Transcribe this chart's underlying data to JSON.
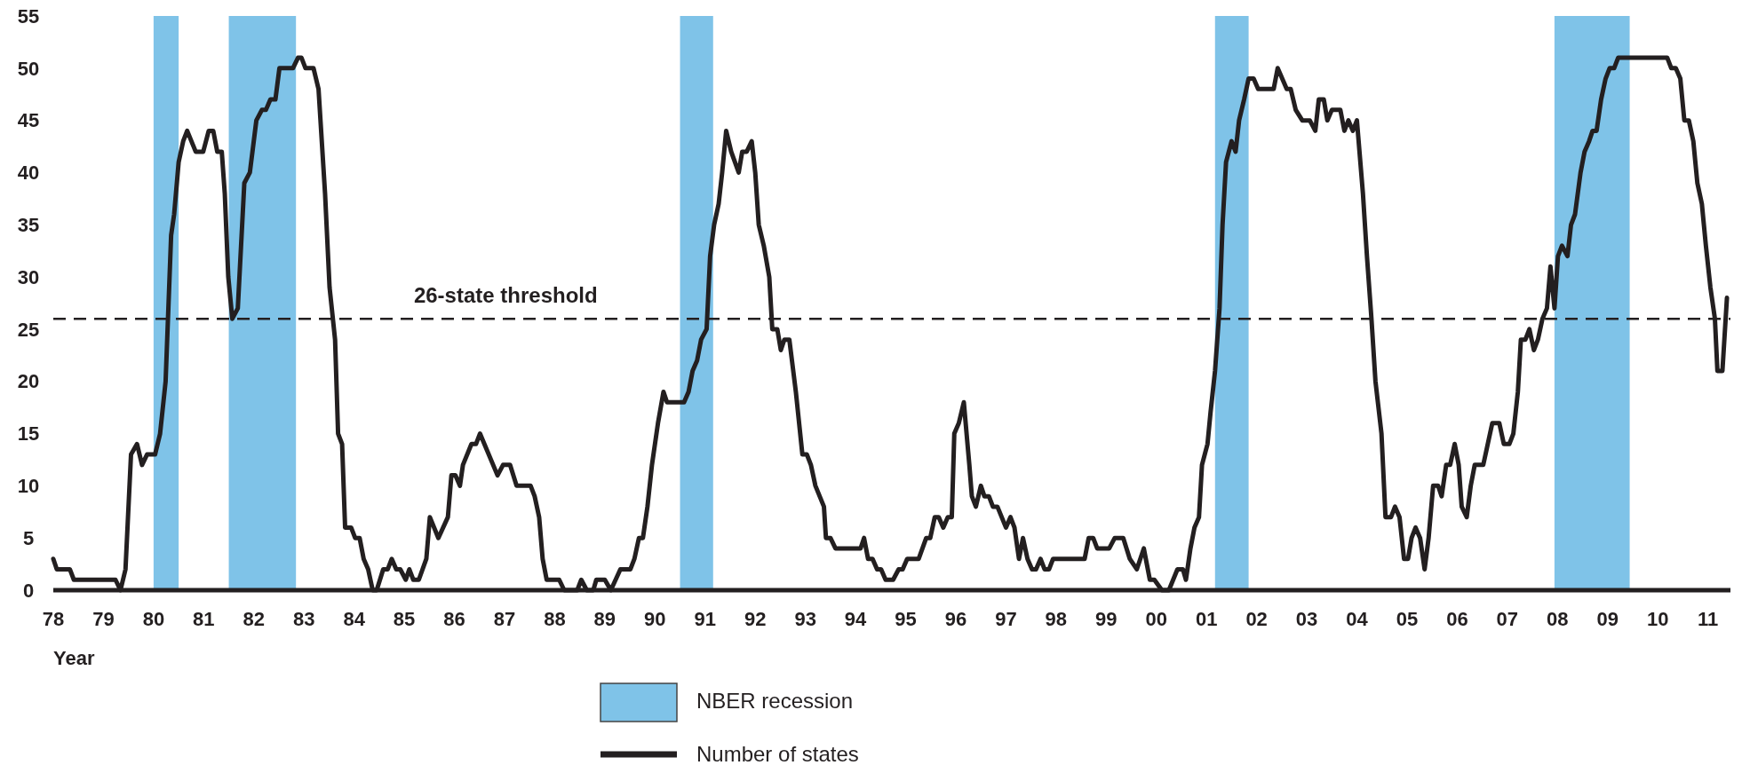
{
  "chart_data": {
    "type": "line",
    "xlabel": "Year",
    "xlim": [
      1978,
      2011.45
    ],
    "xticks": [
      {
        "value": 1978,
        "label": "78"
      },
      {
        "value": 1979,
        "label": "79"
      },
      {
        "value": 1980,
        "label": "80"
      },
      {
        "value": 1981,
        "label": "81"
      },
      {
        "value": 1982,
        "label": "82"
      },
      {
        "value": 1983,
        "label": "83"
      },
      {
        "value": 1984,
        "label": "84"
      },
      {
        "value": 1985,
        "label": "85"
      },
      {
        "value": 1986,
        "label": "86"
      },
      {
        "value": 1987,
        "label": "87"
      },
      {
        "value": 1988,
        "label": "88"
      },
      {
        "value": 1989,
        "label": "89"
      },
      {
        "value": 1990,
        "label": "90"
      },
      {
        "value": 1991,
        "label": "91"
      },
      {
        "value": 1992,
        "label": "92"
      },
      {
        "value": 1993,
        "label": "93"
      },
      {
        "value": 1994,
        "label": "94"
      },
      {
        "value": 1995,
        "label": "95"
      },
      {
        "value": 1996,
        "label": "96"
      },
      {
        "value": 1997,
        "label": "97"
      },
      {
        "value": 1998,
        "label": "98"
      },
      {
        "value": 1999,
        "label": "99"
      },
      {
        "value": 2000,
        "label": "00"
      },
      {
        "value": 2001,
        "label": "01"
      },
      {
        "value": 2002,
        "label": "02"
      },
      {
        "value": 2003,
        "label": "03"
      },
      {
        "value": 2004,
        "label": "04"
      },
      {
        "value": 2005,
        "label": "05"
      },
      {
        "value": 2006,
        "label": "06"
      },
      {
        "value": 2007,
        "label": "07"
      },
      {
        "value": 2008,
        "label": "08"
      },
      {
        "value": 2009,
        "label": "09"
      },
      {
        "value": 2010,
        "label": "10"
      },
      {
        "value": 2011,
        "label": "11"
      }
    ],
    "ylim": [
      0,
      55
    ],
    "yticks": [
      0,
      5,
      10,
      15,
      20,
      25,
      30,
      35,
      40,
      45,
      50,
      55
    ],
    "grid": false,
    "legend": "bottom",
    "marker": "none",
    "line_style": "solid",
    "ref_lines": [
      {
        "axis": "y",
        "value": 26,
        "label": "26-state threshold",
        "color": "#231f20",
        "line_style": "dashed"
      }
    ],
    "bands": [
      {
        "axis": "x",
        "from": 1980.0,
        "to": 1980.5,
        "label": "NBER recession",
        "color": "#7fc3e8"
      },
      {
        "axis": "x",
        "from": 1981.5,
        "to": 1982.84,
        "color": "#7fc3e8"
      },
      {
        "axis": "x",
        "from": 1990.5,
        "to": 1991.16,
        "color": "#7fc3e8"
      },
      {
        "axis": "x",
        "from": 2001.17,
        "to": 2001.84,
        "color": "#7fc3e8"
      },
      {
        "axis": "x",
        "from": 2007.94,
        "to": 2009.44,
        "color": "#7fc3e8"
      }
    ],
    "series": [
      {
        "name": "Number of states",
        "color": "#231f20",
        "x": [
          1978.0,
          1978.07,
          1978.33,
          1978.41,
          1979.24,
          1979.34,
          1979.44,
          1979.55,
          1979.67,
          1979.77,
          1979.87,
          1980.03,
          1980.13,
          1980.24,
          1980.35,
          1980.41,
          1980.5,
          1980.59,
          1980.67,
          1980.84,
          1980.99,
          1981.1,
          1981.19,
          1981.27,
          1981.36,
          1981.42,
          1981.49,
          1981.57,
          1981.68,
          1981.81,
          1981.92,
          1982.05,
          1982.16,
          1982.24,
          1982.33,
          1982.43,
          1982.51,
          1982.78,
          1982.88,
          1982.95,
          1983.03,
          1983.19,
          1983.29,
          1983.42,
          1983.51,
          1983.62,
          1983.68,
          1983.76,
          1983.82,
          1983.94,
          1984.02,
          1984.11,
          1984.19,
          1984.28,
          1984.37,
          1984.45,
          1984.58,
          1984.67,
          1984.75,
          1984.84,
          1984.92,
          1985.03,
          1985.1,
          1985.18,
          1985.29,
          1985.44,
          1985.51,
          1985.68,
          1985.87,
          1985.94,
          1986.02,
          1986.11,
          1986.17,
          1986.34,
          1986.43,
          1986.51,
          1986.86,
          1986.97,
          1987.11,
          1987.24,
          1987.52,
          1987.6,
          1987.69,
          1987.76,
          1987.84,
          1988.09,
          1988.19,
          1988.45,
          1988.53,
          1988.64,
          1988.77,
          1988.83,
          1989.0,
          1989.12,
          1989.31,
          1989.51,
          1989.59,
          1989.68,
          1989.76,
          1989.85,
          1989.94,
          1990.06,
          1990.17,
          1990.24,
          1990.58,
          1990.67,
          1990.75,
          1990.84,
          1990.92,
          1991.03,
          1991.1,
          1991.18,
          1991.27,
          1991.34,
          1991.42,
          1991.52,
          1991.67,
          1991.74,
          1991.83,
          1991.93,
          1992.0,
          1992.07,
          1992.17,
          1992.28,
          1992.34,
          1992.44,
          1992.51,
          1992.58,
          1992.68,
          1992.81,
          1992.94,
          1993.03,
          1993.11,
          1993.2,
          1993.37,
          1993.41,
          1993.5,
          1993.6,
          1994.1,
          1994.17,
          1994.25,
          1994.34,
          1994.43,
          1994.51,
          1994.6,
          1994.75,
          1994.86,
          1994.94,
          1995.03,
          1995.26,
          1995.41,
          1995.49,
          1995.58,
          1995.66,
          1995.75,
          1995.84,
          1995.92,
          1995.97,
          1996.06,
          1996.16,
          1996.27,
          1996.32,
          1996.4,
          1996.5,
          1996.57,
          1996.66,
          1996.74,
          1996.83,
          1997.0,
          1997.09,
          1997.17,
          1997.26,
          1997.34,
          1997.43,
          1997.52,
          1997.6,
          1997.69,
          1997.77,
          1997.86,
          1997.94,
          1998.57,
          1998.65,
          1998.74,
          1998.82,
          1999.06,
          1999.17,
          1999.34,
          1999.47,
          1999.61,
          1999.75,
          1999.87,
          1999.96,
          2000.11,
          2000.25,
          2000.42,
          2000.53,
          2000.59,
          2000.68,
          2000.76,
          2000.85,
          2000.91,
          2001.02,
          2001.08,
          2001.17,
          2001.26,
          2001.32,
          2001.39,
          2001.5,
          2001.58,
          2001.65,
          2001.75,
          2001.84,
          2001.94,
          2002.03,
          2002.34,
          2002.42,
          2002.6,
          2002.68,
          2002.78,
          2002.91,
          2003.06,
          2003.17,
          2003.24,
          2003.34,
          2003.41,
          2003.5,
          2003.67,
          2003.75,
          2003.83,
          2003.92,
          2004.0,
          2004.12,
          2004.2,
          2004.29,
          2004.37,
          2004.49,
          2004.57,
          2004.68,
          2004.76,
          2004.85,
          2004.94,
          2005.02,
          2005.09,
          2005.17,
          2005.26,
          2005.35,
          2005.43,
          2005.52,
          2005.62,
          2005.69,
          2005.78,
          2005.86,
          2005.95,
          2006.03,
          2006.09,
          2006.19,
          2006.27,
          2006.35,
          2006.52,
          2006.61,
          2006.7,
          2006.84,
          2006.93,
          2007.04,
          2007.12,
          2007.21,
          2007.27,
          2007.36,
          2007.44,
          2007.53,
          2007.61,
          2007.7,
          2007.79,
          2007.86,
          2007.94,
          2008.01,
          2008.09,
          2008.2,
          2008.27,
          2008.35,
          2008.46,
          2008.54,
          2008.63,
          2008.7,
          2008.78,
          2008.87,
          2008.96,
          2009.04,
          2009.13,
          2009.21,
          2010.19,
          2010.27,
          2010.36,
          2010.45,
          2010.53,
          2010.62,
          2010.71,
          2010.79,
          2010.88,
          2010.96,
          2011.05,
          2011.14,
          2011.19,
          2011.29,
          2011.38
        ],
        "values": [
          3,
          2,
          2,
          1,
          1,
          0,
          2,
          13,
          14,
          12,
          13,
          13,
          15,
          20,
          34,
          36,
          41,
          43,
          44,
          42,
          42,
          44,
          44,
          42,
          42,
          38,
          30,
          26,
          27,
          39,
          40,
          45,
          46,
          46,
          47,
          47,
          50,
          50,
          51,
          51,
          50,
          50,
          48,
          38,
          29,
          24,
          15,
          14,
          6,
          6,
          5,
          5,
          3,
          2,
          0,
          0,
          2,
          2,
          3,
          2,
          2,
          1,
          2,
          1,
          1,
          3,
          7,
          5,
          7,
          11,
          11,
          10,
          12,
          14,
          14,
          15,
          11,
          12,
          12,
          10,
          10,
          9,
          7,
          3,
          1,
          1,
          0,
          0,
          1,
          0,
          0,
          1,
          1,
          0,
          2,
          2,
          3,
          5,
          5,
          8,
          12,
          16,
          19,
          18,
          18,
          19,
          21,
          22,
          24,
          25,
          32,
          35,
          37,
          40,
          44,
          42,
          40,
          42,
          42,
          43,
          40,
          35,
          33,
          30,
          25,
          25,
          23,
          24,
          24,
          19,
          13,
          13,
          12,
          10,
          8,
          5,
          5,
          4,
          4,
          5,
          3,
          3,
          2,
          2,
          1,
          1,
          2,
          2,
          3,
          3,
          5,
          5,
          7,
          7,
          6,
          7,
          7,
          15,
          16,
          18,
          12,
          9,
          8,
          10,
          9,
          9,
          8,
          8,
          6,
          7,
          6,
          3,
          5,
          3,
          2,
          2,
          3,
          2,
          2,
          3,
          3,
          5,
          5,
          4,
          4,
          5,
          5,
          3,
          2,
          4,
          1,
          1,
          0,
          0,
          2,
          2,
          1,
          4,
          6,
          7,
          12,
          14,
          17,
          21,
          27,
          35,
          41,
          43,
          42,
          45,
          47,
          49,
          49,
          48,
          48,
          50,
          48,
          48,
          46,
          45,
          45,
          44,
          47,
          47,
          45,
          46,
          46,
          44,
          45,
          44,
          45,
          38,
          32,
          26,
          20,
          15,
          7,
          7,
          8,
          7,
          3,
          3,
          5,
          6,
          5,
          2,
          5,
          10,
          10,
          9,
          12,
          12,
          14,
          12,
          8,
          7,
          10,
          12,
          12,
          14,
          16,
          16,
          14,
          14,
          15,
          19,
          24,
          24,
          25,
          23,
          24,
          26,
          27,
          31,
          27,
          32,
          33,
          32,
          35,
          36,
          40,
          42,
          43,
          44,
          44,
          47,
          49,
          50,
          50,
          51,
          51,
          50,
          50,
          49,
          45,
          45,
          43,
          39,
          37,
          33,
          29,
          26,
          21,
          21,
          28
        ]
      }
    ]
  }
}
